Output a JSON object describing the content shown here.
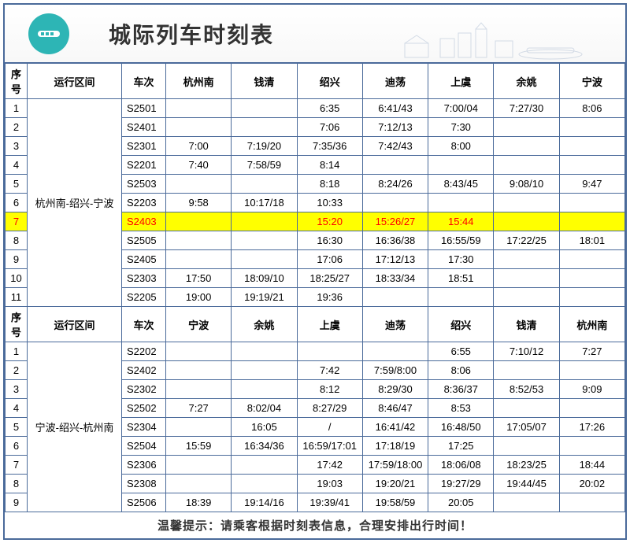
{
  "title": "城际列车时刻表",
  "header1": {
    "idx": "序号",
    "route": "运行区间",
    "train": "车次",
    "s1": "杭州南",
    "s2": "钱清",
    "s3": "绍兴",
    "s4": "迪荡",
    "s5": "上虞",
    "s6": "余姚",
    "s7": "宁波"
  },
  "route1": "杭州南-绍兴-宁波",
  "rows1": [
    {
      "n": "1",
      "t": "S2501",
      "c1": "",
      "c2": "",
      "c3": "6:35",
      "c4": "6:41/43",
      "c5": "7:00/04",
      "c6": "7:27/30",
      "c7": "8:06"
    },
    {
      "n": "2",
      "t": "S2401",
      "c1": "",
      "c2": "",
      "c3": "7:06",
      "c4": "7:12/13",
      "c5": "7:30",
      "c6": "",
      "c7": ""
    },
    {
      "n": "3",
      "t": "S2301",
      "c1": "7:00",
      "c2": "7:19/20",
      "c3": "7:35/36",
      "c4": "7:42/43",
      "c5": "8:00",
      "c6": "",
      "c7": ""
    },
    {
      "n": "4",
      "t": "S2201",
      "c1": "7:40",
      "c2": "7:58/59",
      "c3": "8:14",
      "c4": "",
      "c5": "",
      "c6": "",
      "c7": ""
    },
    {
      "n": "5",
      "t": "S2503",
      "c1": "",
      "c2": "",
      "c3": "8:18",
      "c4": "8:24/26",
      "c5": "8:43/45",
      "c6": "9:08/10",
      "c7": "9:47"
    },
    {
      "n": "6",
      "t": "S2203",
      "c1": "9:58",
      "c2": "10:17/18",
      "c3": "10:33",
      "c4": "",
      "c5": "",
      "c6": "",
      "c7": ""
    },
    {
      "n": "7",
      "t": "S2403",
      "c1": "",
      "c2": "",
      "c3": "15:20",
      "c4": "15:26/27",
      "c5": "15:44",
      "c6": "",
      "c7": "",
      "hl": true
    },
    {
      "n": "8",
      "t": "S2505",
      "c1": "",
      "c2": "",
      "c3": "16:30",
      "c4": "16:36/38",
      "c5": "16:55/59",
      "c6": "17:22/25",
      "c7": "18:01"
    },
    {
      "n": "9",
      "t": "S2405",
      "c1": "",
      "c2": "",
      "c3": "17:06",
      "c4": "17:12/13",
      "c5": "17:30",
      "c6": "",
      "c7": ""
    },
    {
      "n": "10",
      "t": "S2303",
      "c1": "17:50",
      "c2": "18:09/10",
      "c3": "18:25/27",
      "c4": "18:33/34",
      "c5": "18:51",
      "c6": "",
      "c7": ""
    },
    {
      "n": "11",
      "t": "S2205",
      "c1": "19:00",
      "c2": "19:19/21",
      "c3": "19:36",
      "c4": "",
      "c5": "",
      "c6": "",
      "c7": ""
    }
  ],
  "header2": {
    "idx": "序号",
    "route": "运行区间",
    "train": "车次",
    "s1": "宁波",
    "s2": "余姚",
    "s3": "上虞",
    "s4": "迪荡",
    "s5": "绍兴",
    "s6": "钱清",
    "s7": "杭州南"
  },
  "route2": "宁波-绍兴-杭州南",
  "rows2": [
    {
      "n": "1",
      "t": "S2202",
      "c1": "",
      "c2": "",
      "c3": "",
      "c4": "",
      "c5": "6:55",
      "c6": "7:10/12",
      "c7": "7:27"
    },
    {
      "n": "2",
      "t": "S2402",
      "c1": "",
      "c2": "",
      "c3": "7:42",
      "c4": "7:59/8:00",
      "c5": "8:06",
      "c6": "",
      "c7": ""
    },
    {
      "n": "3",
      "t": "S2302",
      "c1": "",
      "c2": "",
      "c3": "8:12",
      "c4": "8:29/30",
      "c5": "8:36/37",
      "c6": "8:52/53",
      "c7": "9:09"
    },
    {
      "n": "4",
      "t": "S2502",
      "c1": "7:27",
      "c2": "8:02/04",
      "c3": "8:27/29",
      "c4": "8:46/47",
      "c5": "8:53",
      "c6": "",
      "c7": ""
    },
    {
      "n": "5",
      "t": "S2304",
      "c1": "",
      "c2": "16:05",
      "c3": "/",
      "c4": "16:41/42",
      "c5": "16:48/50",
      "c6": "17:05/07",
      "c7": "17:26"
    },
    {
      "n": "6",
      "t": "S2504",
      "c1": "15:59",
      "c2": "16:34/36",
      "c3": "16:59/17:01",
      "c4": "17:18/19",
      "c5": "17:25",
      "c6": "",
      "c7": ""
    },
    {
      "n": "7",
      "t": "S2306",
      "c1": "",
      "c2": "",
      "c3": "17:42",
      "c4": "17:59/18:00",
      "c5": "18:06/08",
      "c6": "18:23/25",
      "c7": "18:44"
    },
    {
      "n": "8",
      "t": "S2308",
      "c1": "",
      "c2": "",
      "c3": "19:03",
      "c4": "19:20/21",
      "c5": "19:27/29",
      "c6": "19:44/45",
      "c7": "20:02"
    },
    {
      "n": "9",
      "t": "S2506",
      "c1": "18:39",
      "c2": "19:14/16",
      "c3": "19:39/41",
      "c4": "19:58/59",
      "c5": "20:05",
      "c6": "",
      "c7": ""
    }
  ],
  "footer": "温馨提示：请乘客根据时刻表信息，合理安排出行时间！"
}
